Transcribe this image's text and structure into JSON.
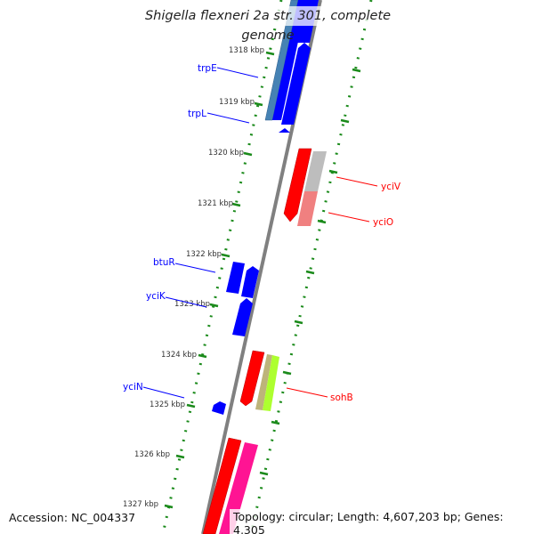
{
  "title": "Shigella flexneri 2a str. 301, complete genome",
  "accession": "Accession: NC_004337",
  "topology": "Topology: circular; Length: 4,607,203 bp; Genes: 4,305",
  "ticks": [
    "1318 kbp",
    "1319 kbp",
    "1320 kbp",
    "1321 kbp",
    "1322 kbp",
    "1323 kbp",
    "1324 kbp",
    "1325 kbp",
    "1326 kbp",
    "1327 kbp"
  ],
  "genes": {
    "trpE": "trpE",
    "trpL": "trpL",
    "btuR": "btuR",
    "yciK": "yciK",
    "yciN": "yciN",
    "yciV": "yciV",
    "yciO": "yciO",
    "sohB": "sohB"
  },
  "colors": {
    "forward": "#0000ff",
    "reverse": "#ff0000",
    "backbone": "#808080",
    "ring": "#228b22"
  }
}
